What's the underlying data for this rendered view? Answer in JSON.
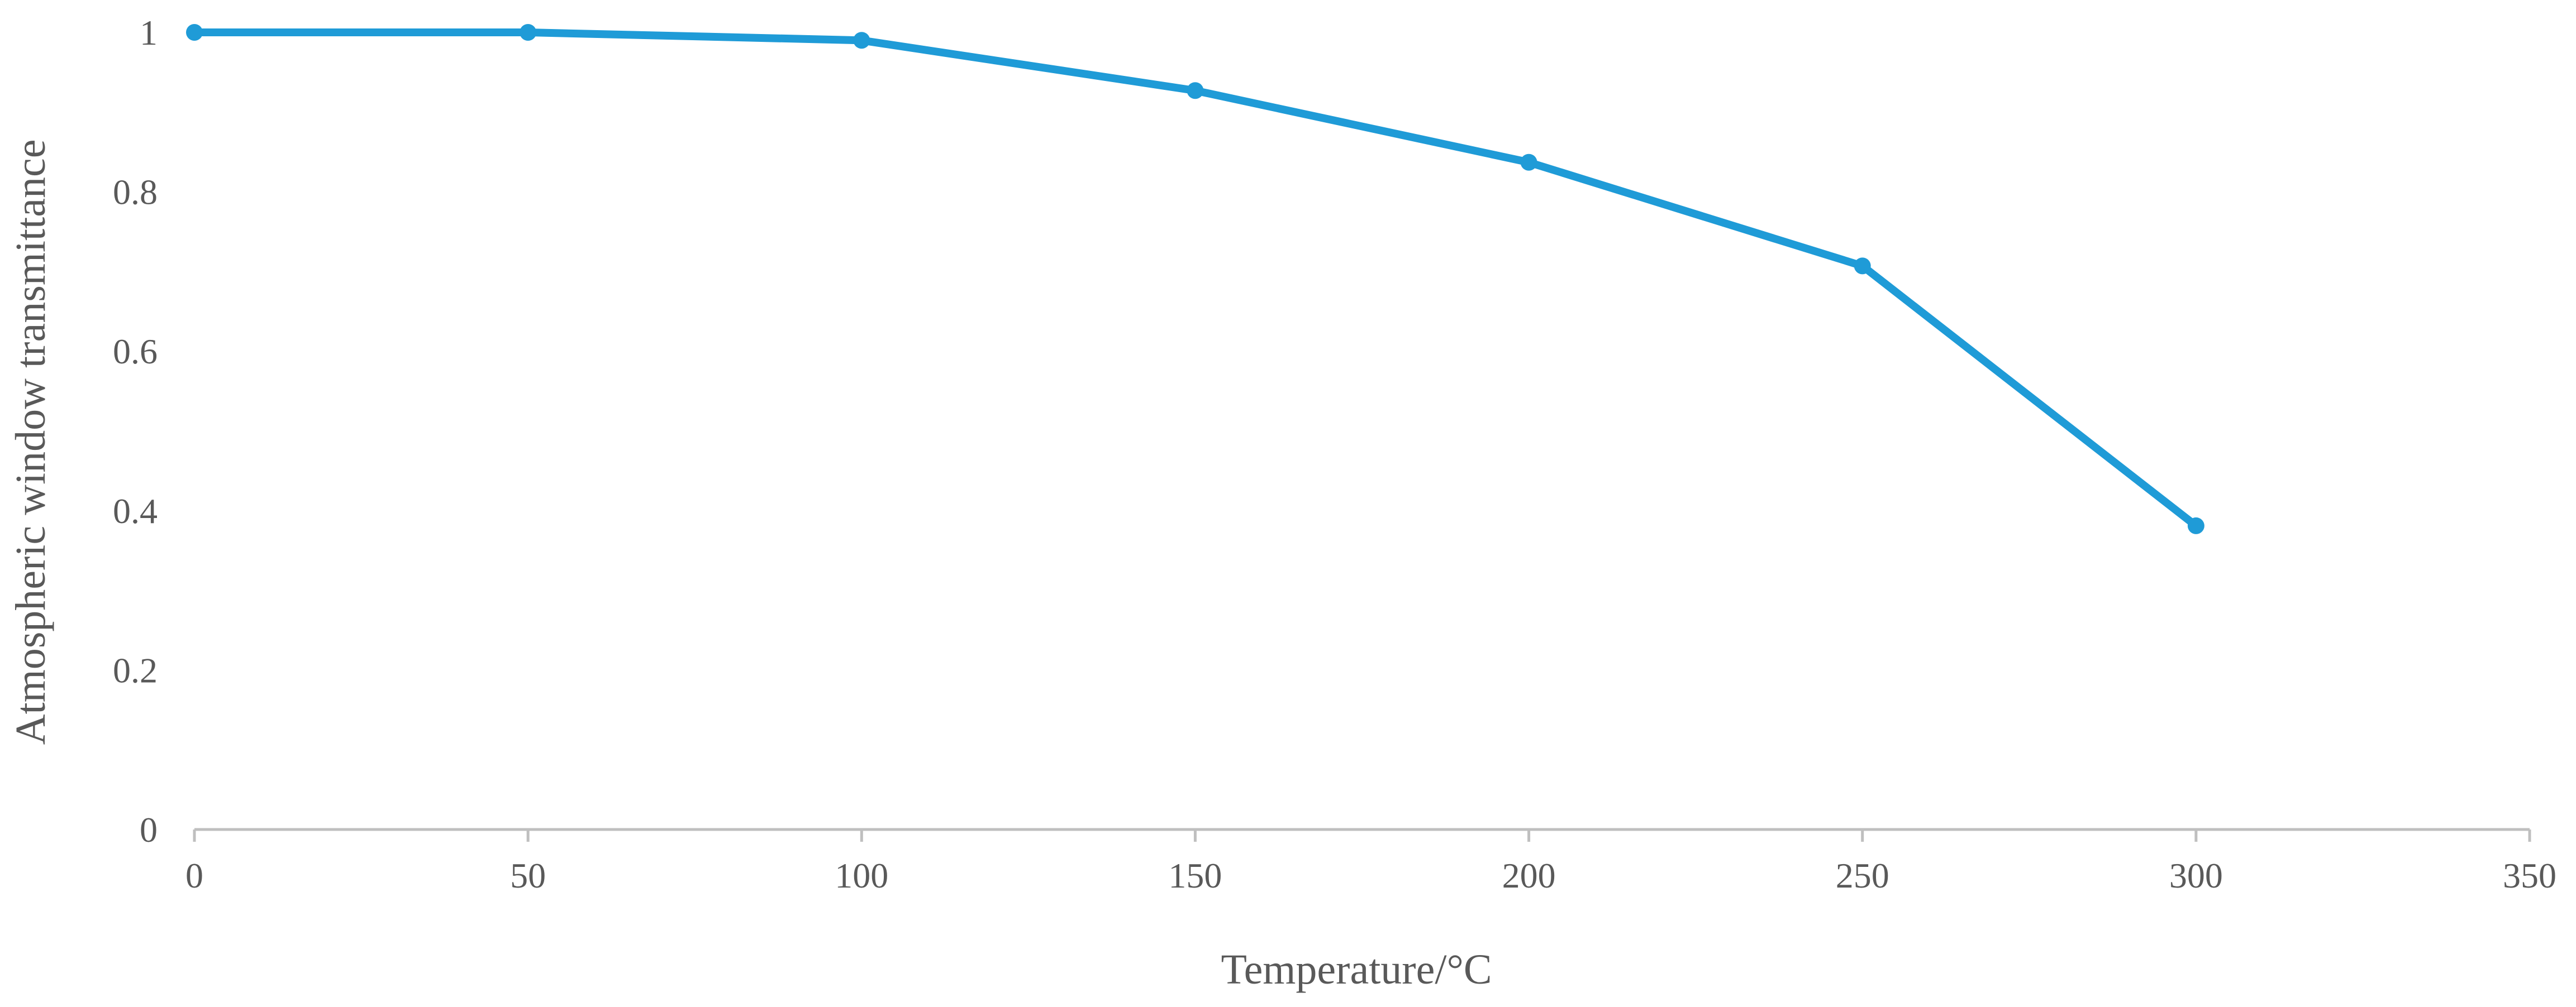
{
  "chart_data": {
    "type": "line",
    "title": "",
    "xlabel": "Temperature/°C",
    "ylabel": "Atmospheric window transmittance",
    "xlim": [
      0,
      350
    ],
    "ylim": [
      0,
      1
    ],
    "x_ticks": [
      "0",
      "50",
      "100",
      "150",
      "200",
      "250",
      "300",
      "350"
    ],
    "y_ticks": [
      "0",
      "0.2",
      "0.4",
      "0.6",
      "0.8",
      "1"
    ],
    "grid": false,
    "legend": "none",
    "series": [
      {
        "color": "#1f9bd7",
        "marker": "circle",
        "x": [
          0,
          50,
          100,
          150,
          200,
          250,
          300
        ],
        "y": [
          1.0,
          1.0,
          0.99,
          0.927,
          0.837,
          0.707,
          0.381
        ]
      }
    ],
    "axis_color": "#bfbfbf",
    "text_color": "#595959"
  }
}
